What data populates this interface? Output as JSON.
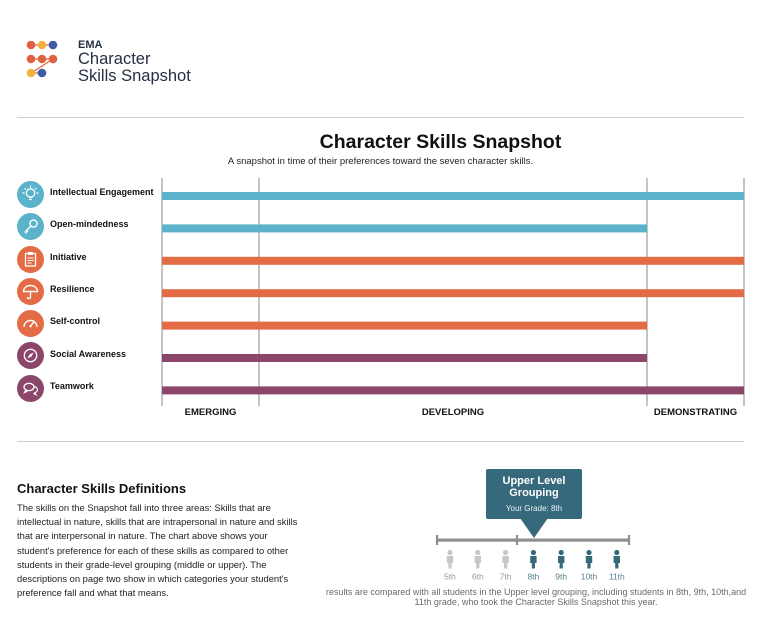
{
  "logo": {
    "abbr": "EMA",
    "line1": "Character",
    "line2": "Skills Snapshot",
    "dot_colors": [
      "#e0613f",
      "#f0b43e",
      "#3f5aa6",
      "#e0613f",
      "#e0613f",
      "#e0613f",
      "#f0b43e",
      "#3f5aa6"
    ]
  },
  "colors": {
    "intellectual": "#5ab2cb",
    "intrapersonal": "#e36b45",
    "interpersonal": "#8b4669",
    "grade_active": "#36697c",
    "grade_inactive": "#c7c7c7",
    "gridline": "#8a8a8a"
  },
  "chart_data": {
    "type": "bar",
    "orientation": "horizontal",
    "title": "Character Skills Snapshot",
    "subtitle": "A snapshot in time of their preferences toward the seven character skills.",
    "xlim": [
      0,
      3
    ],
    "x_categories": [
      "EMERGING",
      "DEVELOPING",
      "DEMONSTRATING"
    ],
    "category_boundaries": [
      0,
      0.5,
      2.5,
      3
    ],
    "skills": [
      {
        "name": "Intellectual Engagement",
        "icon": "lightbulb-icon",
        "group": "intellectual",
        "value": 3.0
      },
      {
        "name": "Open-mindedness",
        "icon": "key-icon",
        "group": "intellectual",
        "value": 2.5
      },
      {
        "name": "Initiative",
        "icon": "clipboard-icon",
        "group": "intrapersonal",
        "value": 3.0
      },
      {
        "name": "Resilience",
        "icon": "umbrella-icon",
        "group": "intrapersonal",
        "value": 3.0
      },
      {
        "name": "Self-control",
        "icon": "gauge-icon",
        "group": "intrapersonal",
        "value": 2.5
      },
      {
        "name": "Social Awareness",
        "icon": "compass-icon",
        "group": "interpersonal",
        "value": 2.5
      },
      {
        "name": "Teamwork",
        "icon": "chat-bubbles-icon",
        "group": "interpersonal",
        "value": 3.0
      }
    ]
  },
  "definitions": {
    "title": "Character Skills Definitions",
    "body": "The skills on the Snapshot fall into three areas: Skills that are intellectual in nature, skills that are intrapersonal in nature and skills that are interpersonal in nature. The chart above shows your student's preference for each of these skills as compared to other students in their grade-level grouping (middle or upper). The descriptions on page two show in which categories your student's preference fall and what that means."
  },
  "grouping": {
    "title": "Upper Level Grouping",
    "your_grade": "Your Grade: 8th",
    "grades": [
      "5th",
      "6th",
      "7th",
      "8th",
      "9th",
      "10th",
      "11th"
    ],
    "active_grades": [
      "8th",
      "9th",
      "10th",
      "11th"
    ],
    "footnote": "results are compared with all students in the Upper level grouping, including students in 8th, 9th, 10th,and 11th grade, who took the Character Skills Snapshot this year."
  }
}
